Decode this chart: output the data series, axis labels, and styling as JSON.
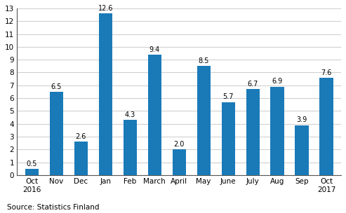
{
  "categories": [
    "Oct\n2016",
    "Nov",
    "Dec",
    "Jan",
    "Feb",
    "March",
    "April",
    "May",
    "June",
    "July",
    "Aug",
    "Sep",
    "Oct\n2017"
  ],
  "values": [
    0.5,
    6.5,
    2.6,
    12.6,
    4.3,
    9.4,
    2.0,
    8.5,
    5.7,
    6.7,
    6.9,
    3.9,
    7.6
  ],
  "bar_color": "#1a7ab8",
  "ylim": [
    0,
    13
  ],
  "yticks": [
    0,
    1,
    2,
    3,
    4,
    5,
    6,
    7,
    8,
    9,
    10,
    11,
    12,
    13
  ],
  "source_text": "Source: Statistics Finland",
  "label_fontsize": 7.0,
  "tick_fontsize": 7.5,
  "source_fontsize": 7.5,
  "background_color": "#ffffff",
  "grid_color": "#d0d0d0",
  "bar_width": 0.55,
  "spine_color": "#555555"
}
